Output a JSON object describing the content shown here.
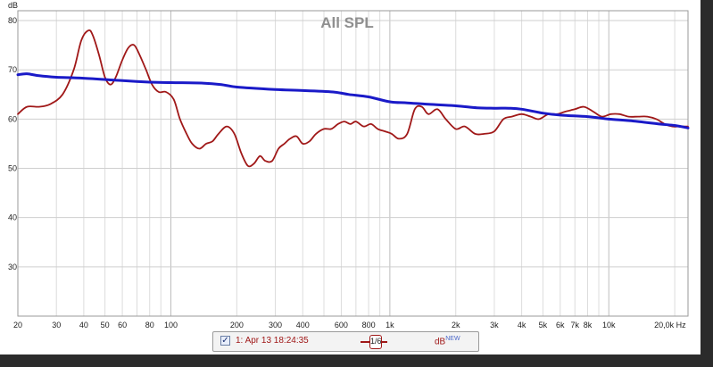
{
  "chart_data": {
    "type": "line",
    "title": "All SPL",
    "ylabel": "dB",
    "xlabel": "",
    "x_scale": "log",
    "xlim": [
      20,
      23000
    ],
    "ylim": [
      20,
      82
    ],
    "grid": true,
    "y_ticks": [
      30,
      40,
      50,
      60,
      70,
      80
    ],
    "x_ticks": [
      {
        "value": 20,
        "label": "20"
      },
      {
        "value": 30,
        "label": "30"
      },
      {
        "value": 40,
        "label": "40"
      },
      {
        "value": 50,
        "label": "50"
      },
      {
        "value": 60,
        "label": "60"
      },
      {
        "value": 80,
        "label": "80"
      },
      {
        "value": 100,
        "label": "100"
      },
      {
        "value": 200,
        "label": "200"
      },
      {
        "value": 300,
        "label": "300"
      },
      {
        "value": 400,
        "label": "400"
      },
      {
        "value": 600,
        "label": "600"
      },
      {
        "value": 800,
        "label": "800"
      },
      {
        "value": 1000,
        "label": "1k"
      },
      {
        "value": 2000,
        "label": "2k"
      },
      {
        "value": 3000,
        "label": "3k"
      },
      {
        "value": 4000,
        "label": "4k"
      },
      {
        "value": 5000,
        "label": "5k"
      },
      {
        "value": 6000,
        "label": "6k"
      },
      {
        "value": 7000,
        "label": "7k"
      },
      {
        "value": 8000,
        "label": "8k"
      },
      {
        "value": 10000,
        "label": "10k"
      },
      {
        "value": 20000,
        "label": "20,0k Hz"
      }
    ],
    "series": [
      {
        "color": "#a01818",
        "x": [
          20,
          22,
          25,
          28,
          32,
          36,
          39,
          42,
          44,
          47,
          50,
          53,
          56,
          60,
          64,
          68,
          72,
          77,
          82,
          88,
          95,
          103,
          110,
          118,
          125,
          135,
          145,
          155,
          165,
          180,
          195,
          210,
          225,
          240,
          255,
          270,
          290,
          310,
          330,
          350,
          375,
          400,
          430,
          460,
          500,
          540,
          580,
          620,
          660,
          700,
          760,
          820,
          880,
          950,
          1020,
          1100,
          1200,
          1300,
          1400,
          1500,
          1650,
          1800,
          2000,
          2200,
          2450,
          2700,
          3000,
          3300,
          3600,
          4000,
          4400,
          4800,
          5300,
          5800,
          6300,
          7000,
          7700,
          8500,
          9300,
          10200,
          11200,
          12300,
          13600,
          15000,
          16500,
          18000,
          19500,
          21000,
          23000
        ],
        "y": [
          61,
          62.5,
          62.5,
          63,
          65,
          70,
          76,
          78,
          77,
          73,
          68.5,
          67,
          68.5,
          72,
          74.5,
          75,
          73,
          70,
          67,
          65.5,
          65.5,
          64,
          60,
          57,
          55,
          54,
          55,
          55.5,
          57,
          58.5,
          57,
          53,
          50.5,
          51,
          52.5,
          51.5,
          51.5,
          54,
          55,
          56,
          56.5,
          55,
          55.5,
          57,
          58,
          58,
          59,
          59.5,
          59,
          59.5,
          58.5,
          59,
          58,
          57.5,
          57,
          56,
          57,
          62,
          62.5,
          61,
          62,
          60,
          58,
          58.5,
          57,
          57,
          57.5,
          60,
          60.5,
          61,
          60.5,
          60,
          61,
          61,
          61.5,
          62,
          62.5,
          61.5,
          60.5,
          61,
          61,
          60.5,
          60.5,
          60.5,
          60,
          59,
          58.5,
          58.5,
          58.5
        ]
      },
      {
        "color": "#1a1ac8",
        "x": [
          20,
          22,
          25,
          30,
          40,
          60,
          80,
          100,
          140,
          170,
          200,
          300,
          400,
          550,
          650,
          800,
          1000,
          1200,
          1500,
          2000,
          2500,
          3000,
          3500,
          4000,
          5000,
          6000,
          8000,
          10000,
          13000,
          17000,
          20000,
          23000
        ],
        "y": [
          69,
          69.2,
          68.8,
          68.5,
          68.3,
          67.8,
          67.5,
          67.4,
          67.3,
          67.0,
          66.5,
          66.0,
          65.8,
          65.5,
          65.0,
          64.5,
          63.5,
          63.3,
          63.0,
          62.7,
          62.3,
          62.2,
          62.2,
          62.0,
          61.2,
          60.8,
          60.5,
          60.0,
          59.6,
          59.0,
          58.7,
          58.2
        ]
      }
    ]
  },
  "legend": {
    "checkbox": "✓",
    "name": "1: Apr 13 18:24:35",
    "smoothing": "1/6",
    "unit": "dB",
    "unit_badge": "NEW"
  }
}
